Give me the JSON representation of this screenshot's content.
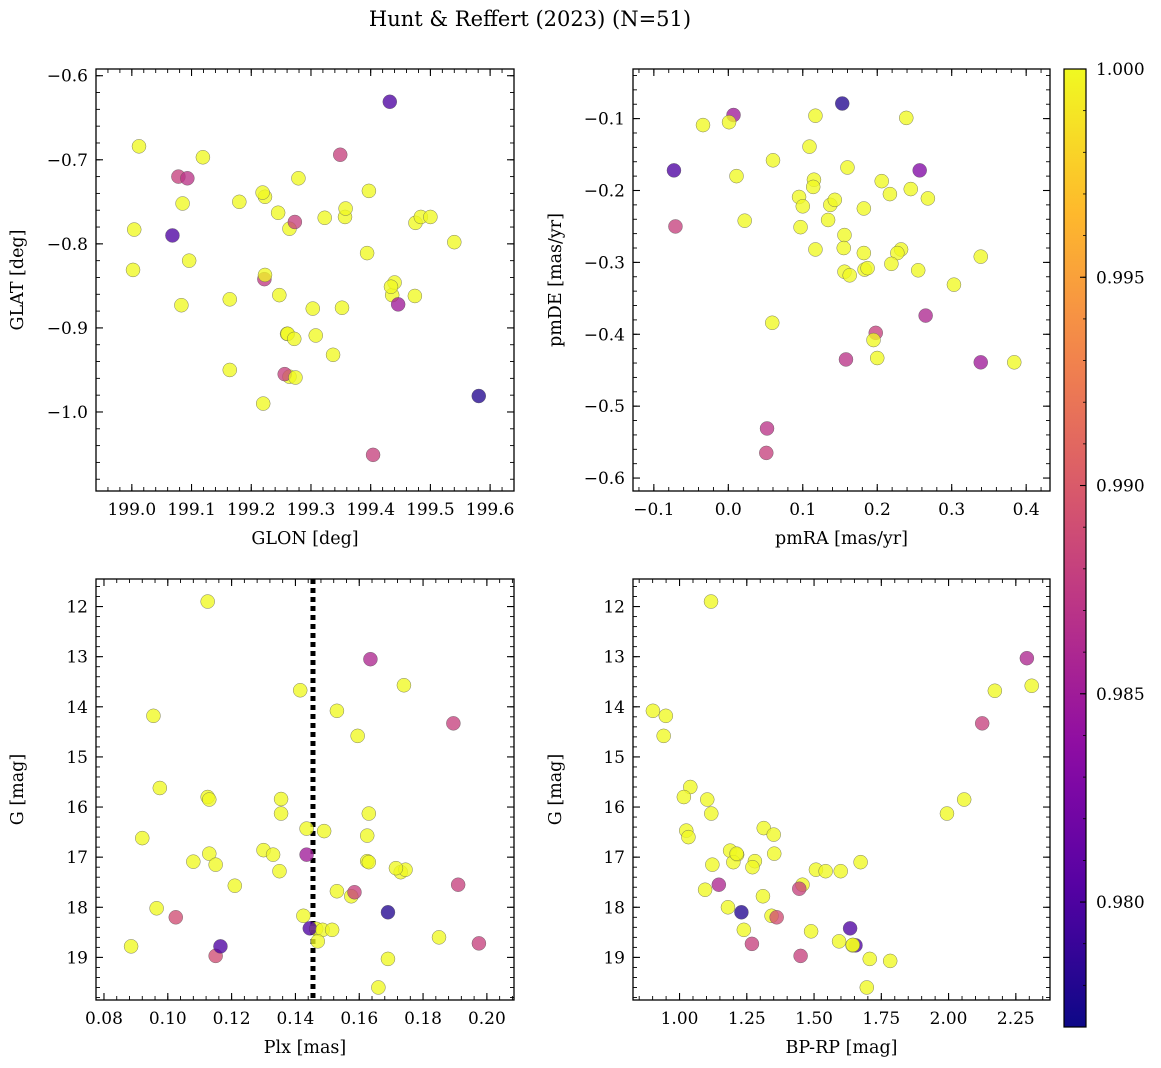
{
  "figure": {
    "title": "Hunt & Reffert (2023) (N=51)",
    "colormap": "plasma",
    "colorbar": {
      "range": [
        0.977,
        1.0
      ],
      "ticks": [
        0.98,
        0.985,
        0.99,
        0.995,
        1.0
      ],
      "tick_labels": [
        "0.980",
        "0.985",
        "0.990",
        "0.995",
        "1.000"
      ]
    }
  },
  "chart_data": [
    {
      "type": "scatter",
      "title": "",
      "xlabel": "GLON [deg]",
      "ylabel": "GLAT [deg]",
      "xlim": [
        198.94,
        199.64
      ],
      "ylim": [
        -1.094,
        -0.592
      ],
      "y_inverted": false,
      "xticks": [
        199.0,
        199.1,
        199.2,
        199.3,
        199.4,
        199.5,
        199.6
      ],
      "xtick_labels": [
        "199.0",
        "199.1",
        "199.2",
        "199.3",
        "199.4",
        "199.5",
        "199.6"
      ],
      "yticks": [
        -1.0,
        -0.9,
        -0.8,
        -0.7,
        -0.6
      ],
      "ytick_labels": [
        "−1.0",
        "−0.9",
        "−0.8",
        "−0.7",
        "−0.6"
      ],
      "x": [
        199.004,
        199.012,
        199.002,
        199.078,
        199.085,
        199.093,
        199.096,
        199.068,
        199.083,
        199.119,
        199.164,
        199.18,
        199.164,
        199.22,
        199.223,
        199.222,
        199.223,
        199.219,
        199.245,
        199.247,
        199.26,
        199.261,
        199.264,
        199.272,
        199.279,
        199.264,
        199.256,
        199.274,
        199.303,
        199.308,
        199.323,
        199.337,
        199.349,
        199.352,
        199.357,
        199.358,
        199.394,
        199.397,
        199.432,
        199.436,
        199.44,
        199.446,
        199.474,
        199.475,
        199.484,
        199.5,
        199.54,
        199.434,
        199.581,
        199.404,
        199.273
      ],
      "y": [
        -0.783,
        -0.684,
        -0.831,
        -0.72,
        -0.752,
        -0.722,
        -0.82,
        -0.79,
        -0.873,
        -0.697,
        -0.866,
        -0.75,
        -0.95,
        -0.99,
        -0.744,
        -0.842,
        -0.837,
        -0.739,
        -0.763,
        -0.861,
        -0.907,
        -0.907,
        -0.782,
        -0.913,
        -0.722,
        -0.958,
        -0.955,
        -0.959,
        -0.877,
        -0.909,
        -0.769,
        -0.932,
        -0.694,
        -0.876,
        -0.768,
        -0.758,
        -0.811,
        -0.737,
        -0.631,
        -0.861,
        -0.846,
        -0.872,
        -0.862,
        -0.775,
        -0.768,
        -0.768,
        -0.798,
        -0.851,
        -0.981,
        -1.051,
        -0.774
      ],
      "c": [
        1.0,
        1.0,
        1.0,
        0.988,
        1.0,
        0.987,
        1.0,
        0.98,
        1.0,
        1.0,
        1.0,
        1.0,
        1.0,
        1.0,
        1.0,
        0.9875,
        1.0,
        1.0,
        1.0,
        1.0,
        1.0,
        1.0,
        1.0,
        1.0,
        1.0,
        1.0,
        0.988,
        1.0,
        1.0,
        1.0,
        1.0,
        1.0,
        0.988,
        1.0,
        1.0,
        1.0,
        1.0,
        1.0,
        0.98,
        1.0,
        1.0,
        0.985,
        1.0,
        1.0,
        1.0,
        1.0,
        1.0,
        1.0,
        0.978,
        0.988,
        0.988
      ]
    },
    {
      "type": "scatter",
      "title": "",
      "xlabel": "pmRA [mas/yr]",
      "ylabel": "pmDE [mas/yr]",
      "xlim": [
        -0.128,
        0.432
      ],
      "ylim": [
        -0.618,
        -0.031
      ],
      "y_inverted": false,
      "xticks": [
        -0.1,
        0.0,
        0.1,
        0.2,
        0.3,
        0.4
      ],
      "xtick_labels": [
        "−0.1",
        "0.0",
        "0.1",
        "0.2",
        "0.3",
        "0.4"
      ],
      "yticks": [
        -0.6,
        -0.5,
        -0.4,
        -0.3,
        -0.2,
        -0.1
      ],
      "ytick_labels": [
        "−0.6",
        "−0.5",
        "−0.4",
        "−0.3",
        "−0.2",
        "−0.1"
      ],
      "x": [
        0.153,
        0.007,
        0.239,
        -0.073,
        -0.034,
        0.001,
        0.117,
        0.109,
        -0.071,
        0.011,
        0.06,
        0.115,
        0.257,
        0.206,
        0.137,
        0.143,
        0.114,
        0.245,
        0.268,
        0.095,
        0.217,
        0.1,
        0.022,
        0.134,
        0.097,
        0.156,
        0.182,
        0.117,
        0.232,
        0.227,
        0.155,
        0.182,
        0.183,
        0.219,
        0.187,
        0.156,
        0.163,
        0.255,
        0.303,
        0.339,
        0.059,
        0.265,
        0.198,
        0.195,
        0.2,
        0.158,
        0.339,
        0.384,
        0.052,
        0.051,
        0.16
      ],
      "y": [
        -0.079,
        -0.095,
        -0.099,
        -0.172,
        -0.109,
        -0.105,
        -0.096,
        -0.139,
        -0.25,
        -0.18,
        -0.158,
        -0.185,
        -0.172,
        -0.187,
        -0.22,
        -0.213,
        -0.195,
        -0.198,
        -0.211,
        -0.209,
        -0.205,
        -0.222,
        -0.242,
        -0.241,
        -0.251,
        -0.262,
        -0.225,
        -0.282,
        -0.282,
        -0.287,
        -0.28,
        -0.287,
        -0.31,
        -0.302,
        -0.308,
        -0.313,
        -0.318,
        -0.311,
        -0.331,
        -0.292,
        -0.384,
        -0.374,
        -0.398,
        -0.408,
        -0.433,
        -0.435,
        -0.439,
        -0.439,
        -0.531,
        -0.565,
        -0.168
      ],
      "c": [
        0.978,
        0.985,
        1.0,
        0.98,
        1.0,
        1.0,
        1.0,
        1.0,
        0.988,
        1.0,
        1.0,
        1.0,
        0.983,
        1.0,
        1.0,
        1.0,
        1.0,
        1.0,
        1.0,
        1.0,
        1.0,
        1.0,
        1.0,
        1.0,
        1.0,
        1.0,
        1.0,
        1.0,
        1.0,
        1.0,
        1.0,
        1.0,
        1.0,
        1.0,
        1.0,
        1.0,
        1.0,
        1.0,
        1.0,
        1.0,
        1.0,
        0.986,
        0.988,
        1.0,
        1.0,
        0.987,
        0.985,
        1.0,
        0.987,
        0.988,
        1.0
      ]
    },
    {
      "type": "scatter",
      "title": "",
      "xlabel": "Plx [mas]",
      "ylabel": "G [mag]",
      "xlim": [
        0.0775,
        0.2085
      ],
      "ylim": [
        19.85,
        11.45
      ],
      "y_inverted": true,
      "xticks": [
        0.08,
        0.1,
        0.12,
        0.14,
        0.16,
        0.18,
        0.2
      ],
      "xtick_labels": [
        "0.08",
        "0.10",
        "0.12",
        "0.14",
        "0.16",
        "0.18",
        "0.20"
      ],
      "yticks": [
        12,
        13,
        14,
        15,
        16,
        17,
        18,
        19
      ],
      "ytick_labels": [
        "12",
        "13",
        "14",
        "15",
        "16",
        "17",
        "18",
        "19"
      ],
      "reference_line": {
        "style": "dotted",
        "orientation": "vertical",
        "x": 0.1455
      },
      "x": [
        0.1125,
        0.1635,
        0.1415,
        0.174,
        0.0955,
        0.153,
        0.1895,
        0.1595,
        0.0975,
        0.1125,
        0.113,
        0.1355,
        0.1355,
        0.163,
        0.1435,
        0.149,
        0.1625,
        0.13,
        0.133,
        0.108,
        0.113,
        0.115,
        0.092,
        0.1625,
        0.1435,
        0.163,
        0.173,
        0.1745,
        0.1715,
        0.135,
        0.153,
        0.1575,
        0.1585,
        0.121,
        0.191,
        0.0965,
        0.1425,
        0.1025,
        0.169,
        0.1465,
        0.1445,
        0.1485,
        0.1515,
        0.185,
        0.1975,
        0.0885,
        0.115,
        0.147,
        0.169,
        0.166,
        0.1165
      ],
      "y": [
        11.9,
        13.05,
        13.67,
        13.57,
        14.18,
        14.08,
        14.33,
        14.58,
        15.62,
        15.8,
        15.85,
        15.84,
        16.13,
        16.13,
        16.43,
        16.48,
        16.57,
        16.86,
        16.95,
        17.09,
        16.93,
        17.15,
        16.62,
        17.08,
        16.95,
        17.1,
        17.3,
        17.25,
        17.22,
        17.28,
        17.68,
        17.78,
        17.7,
        17.57,
        17.55,
        18.02,
        18.17,
        18.2,
        18.1,
        18.43,
        18.42,
        18.45,
        18.45,
        18.6,
        18.72,
        18.78,
        18.97,
        18.68,
        19.03,
        19.6,
        18.78
      ],
      "c": [
        1.0,
        0.986,
        1.0,
        1.0,
        1.0,
        1.0,
        0.988,
        1.0,
        1.0,
        1.0,
        1.0,
        1.0,
        1.0,
        1.0,
        1.0,
        1.0,
        1.0,
        1.0,
        1.0,
        1.0,
        1.0,
        1.0,
        1.0,
        1.0,
        0.985,
        1.0,
        1.0,
        1.0,
        1.0,
        1.0,
        1.0,
        1.0,
        0.988,
        1.0,
        0.988,
        1.0,
        1.0,
        0.989,
        0.978,
        1.0,
        0.98,
        1.0,
        1.0,
        1.0,
        0.988,
        1.0,
        0.989,
        1.0,
        1.0,
        1.0,
        0.98
      ]
    },
    {
      "type": "scatter",
      "title": "",
      "xlabel": "BP-RP [mag]",
      "ylabel": "G [mag]",
      "xlim": [
        0.827,
        2.377
      ],
      "ylim": [
        19.85,
        11.45
      ],
      "y_inverted": true,
      "xticks": [
        1.0,
        1.25,
        1.5,
        1.75,
        2.0,
        2.25
      ],
      "xtick_labels": [
        "1.00",
        "1.25",
        "1.50",
        "1.75",
        "2.00",
        "2.25"
      ],
      "yticks": [
        12,
        13,
        14,
        15,
        16,
        17,
        18,
        19
      ],
      "ytick_labels": [
        "12",
        "13",
        "14",
        "15",
        "16",
        "17",
        "18",
        "19"
      ],
      "x": [
        1.117,
        2.291,
        2.309,
        2.172,
        0.901,
        0.949,
        0.941,
        2.125,
        1.04,
        1.016,
        1.103,
        1.118,
        1.994,
        2.058,
        1.313,
        1.35,
        1.188,
        1.214,
        1.122,
        1.2,
        1.28,
        1.352,
        1.271,
        1.025,
        1.212,
        1.033,
        1.507,
        1.543,
        1.599,
        1.673,
        1.095,
        1.457,
        1.445,
        1.31,
        1.18,
        1.146,
        1.23,
        1.342,
        1.361,
        1.239,
        1.269,
        1.489,
        1.593,
        1.634,
        1.654,
        1.643,
        1.45,
        1.707,
        1.783,
        1.696,
        1.644
      ],
      "y": [
        11.9,
        13.03,
        13.58,
        13.68,
        14.08,
        14.18,
        14.58,
        14.33,
        15.6,
        15.8,
        15.85,
        16.13,
        16.13,
        15.85,
        16.42,
        16.55,
        16.87,
        16.95,
        17.15,
        17.1,
        17.08,
        16.93,
        17.2,
        16.47,
        16.93,
        16.6,
        17.25,
        17.28,
        17.28,
        17.1,
        17.65,
        17.55,
        17.63,
        17.78,
        18.0,
        17.55,
        18.1,
        18.17,
        18.2,
        18.45,
        18.73,
        18.48,
        18.68,
        18.42,
        18.76,
        18.76,
        18.97,
        19.03,
        19.07,
        19.6,
        18.75
      ],
      "c": [
        1.0,
        0.986,
        1.0,
        1.0,
        1.0,
        1.0,
        1.0,
        0.988,
        1.0,
        1.0,
        1.0,
        1.0,
        1.0,
        1.0,
        1.0,
        1.0,
        1.0,
        1.0,
        1.0,
        1.0,
        1.0,
        1.0,
        1.0,
        1.0,
        1.0,
        1.0,
        1.0,
        1.0,
        1.0,
        1.0,
        1.0,
        1.0,
        0.988,
        1.0,
        1.0,
        0.986,
        0.978,
        1.0,
        0.989,
        1.0,
        0.988,
        1.0,
        1.0,
        0.98,
        0.98,
        1.0,
        0.988,
        1.0,
        1.0,
        1.0,
        1.0
      ]
    }
  ]
}
